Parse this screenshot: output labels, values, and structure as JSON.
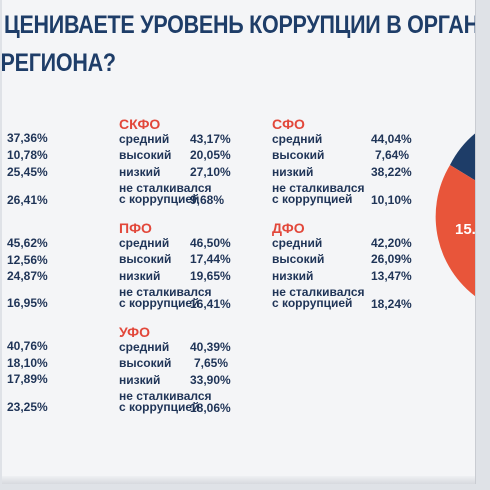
{
  "title": {
    "line1": "ЦЕНИВАЕТЕ УРОВЕНЬ КОРРУПЦИИ В ОРГАНАХ ВЛА",
    "line2": "РЕГИОНА?"
  },
  "left_column": {
    "group1": [
      "37,36%",
      "10,78%",
      "25,45%",
      "26,41%"
    ],
    "group2": [
      "45,62%",
      "12,56%",
      "24,87%",
      "16,95%"
    ],
    "group3": [
      "40,76%",
      "18,10%",
      "17,89%",
      "23,25%"
    ]
  },
  "regions": [
    {
      "name": "СКФО",
      "rows": [
        {
          "label": "средний",
          "value": "43,17%"
        },
        {
          "label": "высокий",
          "value": "20,05%"
        },
        {
          "label": "низкий",
          "value": "27,10%"
        },
        {
          "label_line1": "не сталкивался",
          "label_line2": "с коррупцией",
          "value": "9,68%"
        }
      ]
    },
    {
      "name": "СФО",
      "rows": [
        {
          "label": "средний",
          "value": "44,04%"
        },
        {
          "label": "высокий",
          "value": "7,64%"
        },
        {
          "label": "низкий",
          "value": "38,22%"
        },
        {
          "label_line1": "не сталкивался",
          "label_line2": "с коррупцией",
          "value": "10,10%"
        }
      ]
    },
    {
      "name": "ПФО",
      "rows": [
        {
          "label": "средний",
          "value": "46,50%"
        },
        {
          "label": "высокий",
          "value": "17,44%"
        },
        {
          "label": "низкий",
          "value": "19,65%"
        },
        {
          "label_line1": "не сталкивался",
          "label_line2": "с коррупцией",
          "value": "16,41%"
        }
      ]
    },
    {
      "name": "ДФО",
      "rows": [
        {
          "label": "средний",
          "value": "42,20%"
        },
        {
          "label": "высокий",
          "value": "26,09%"
        },
        {
          "label": "низкий",
          "value": "13,47%"
        },
        {
          "label_line1": "не сталкивался",
          "label_line2": "с коррупцией",
          "value": "18,24%"
        }
      ]
    },
    {
      "name": "УФО",
      "rows": [
        {
          "label": "средний",
          "value": "40,39%"
        },
        {
          "label": "высокий",
          "value": "7,65%"
        },
        {
          "label": "низкий",
          "value": "33,90%"
        },
        {
          "label_line1": "не сталкивался",
          "label_line2": "с коррупцией",
          "value": "18,06%"
        }
      ]
    }
  ],
  "pie": {
    "visible_label": "15.",
    "colors": {
      "dark": "#1e3d68",
      "orange": "#e8553a",
      "light_blue": "#8fb9e0",
      "peach": "#f2b7a5"
    }
  },
  "colors": {
    "title": "#1e3d68",
    "region_name": "#e2473a",
    "text": "#1f3457"
  }
}
